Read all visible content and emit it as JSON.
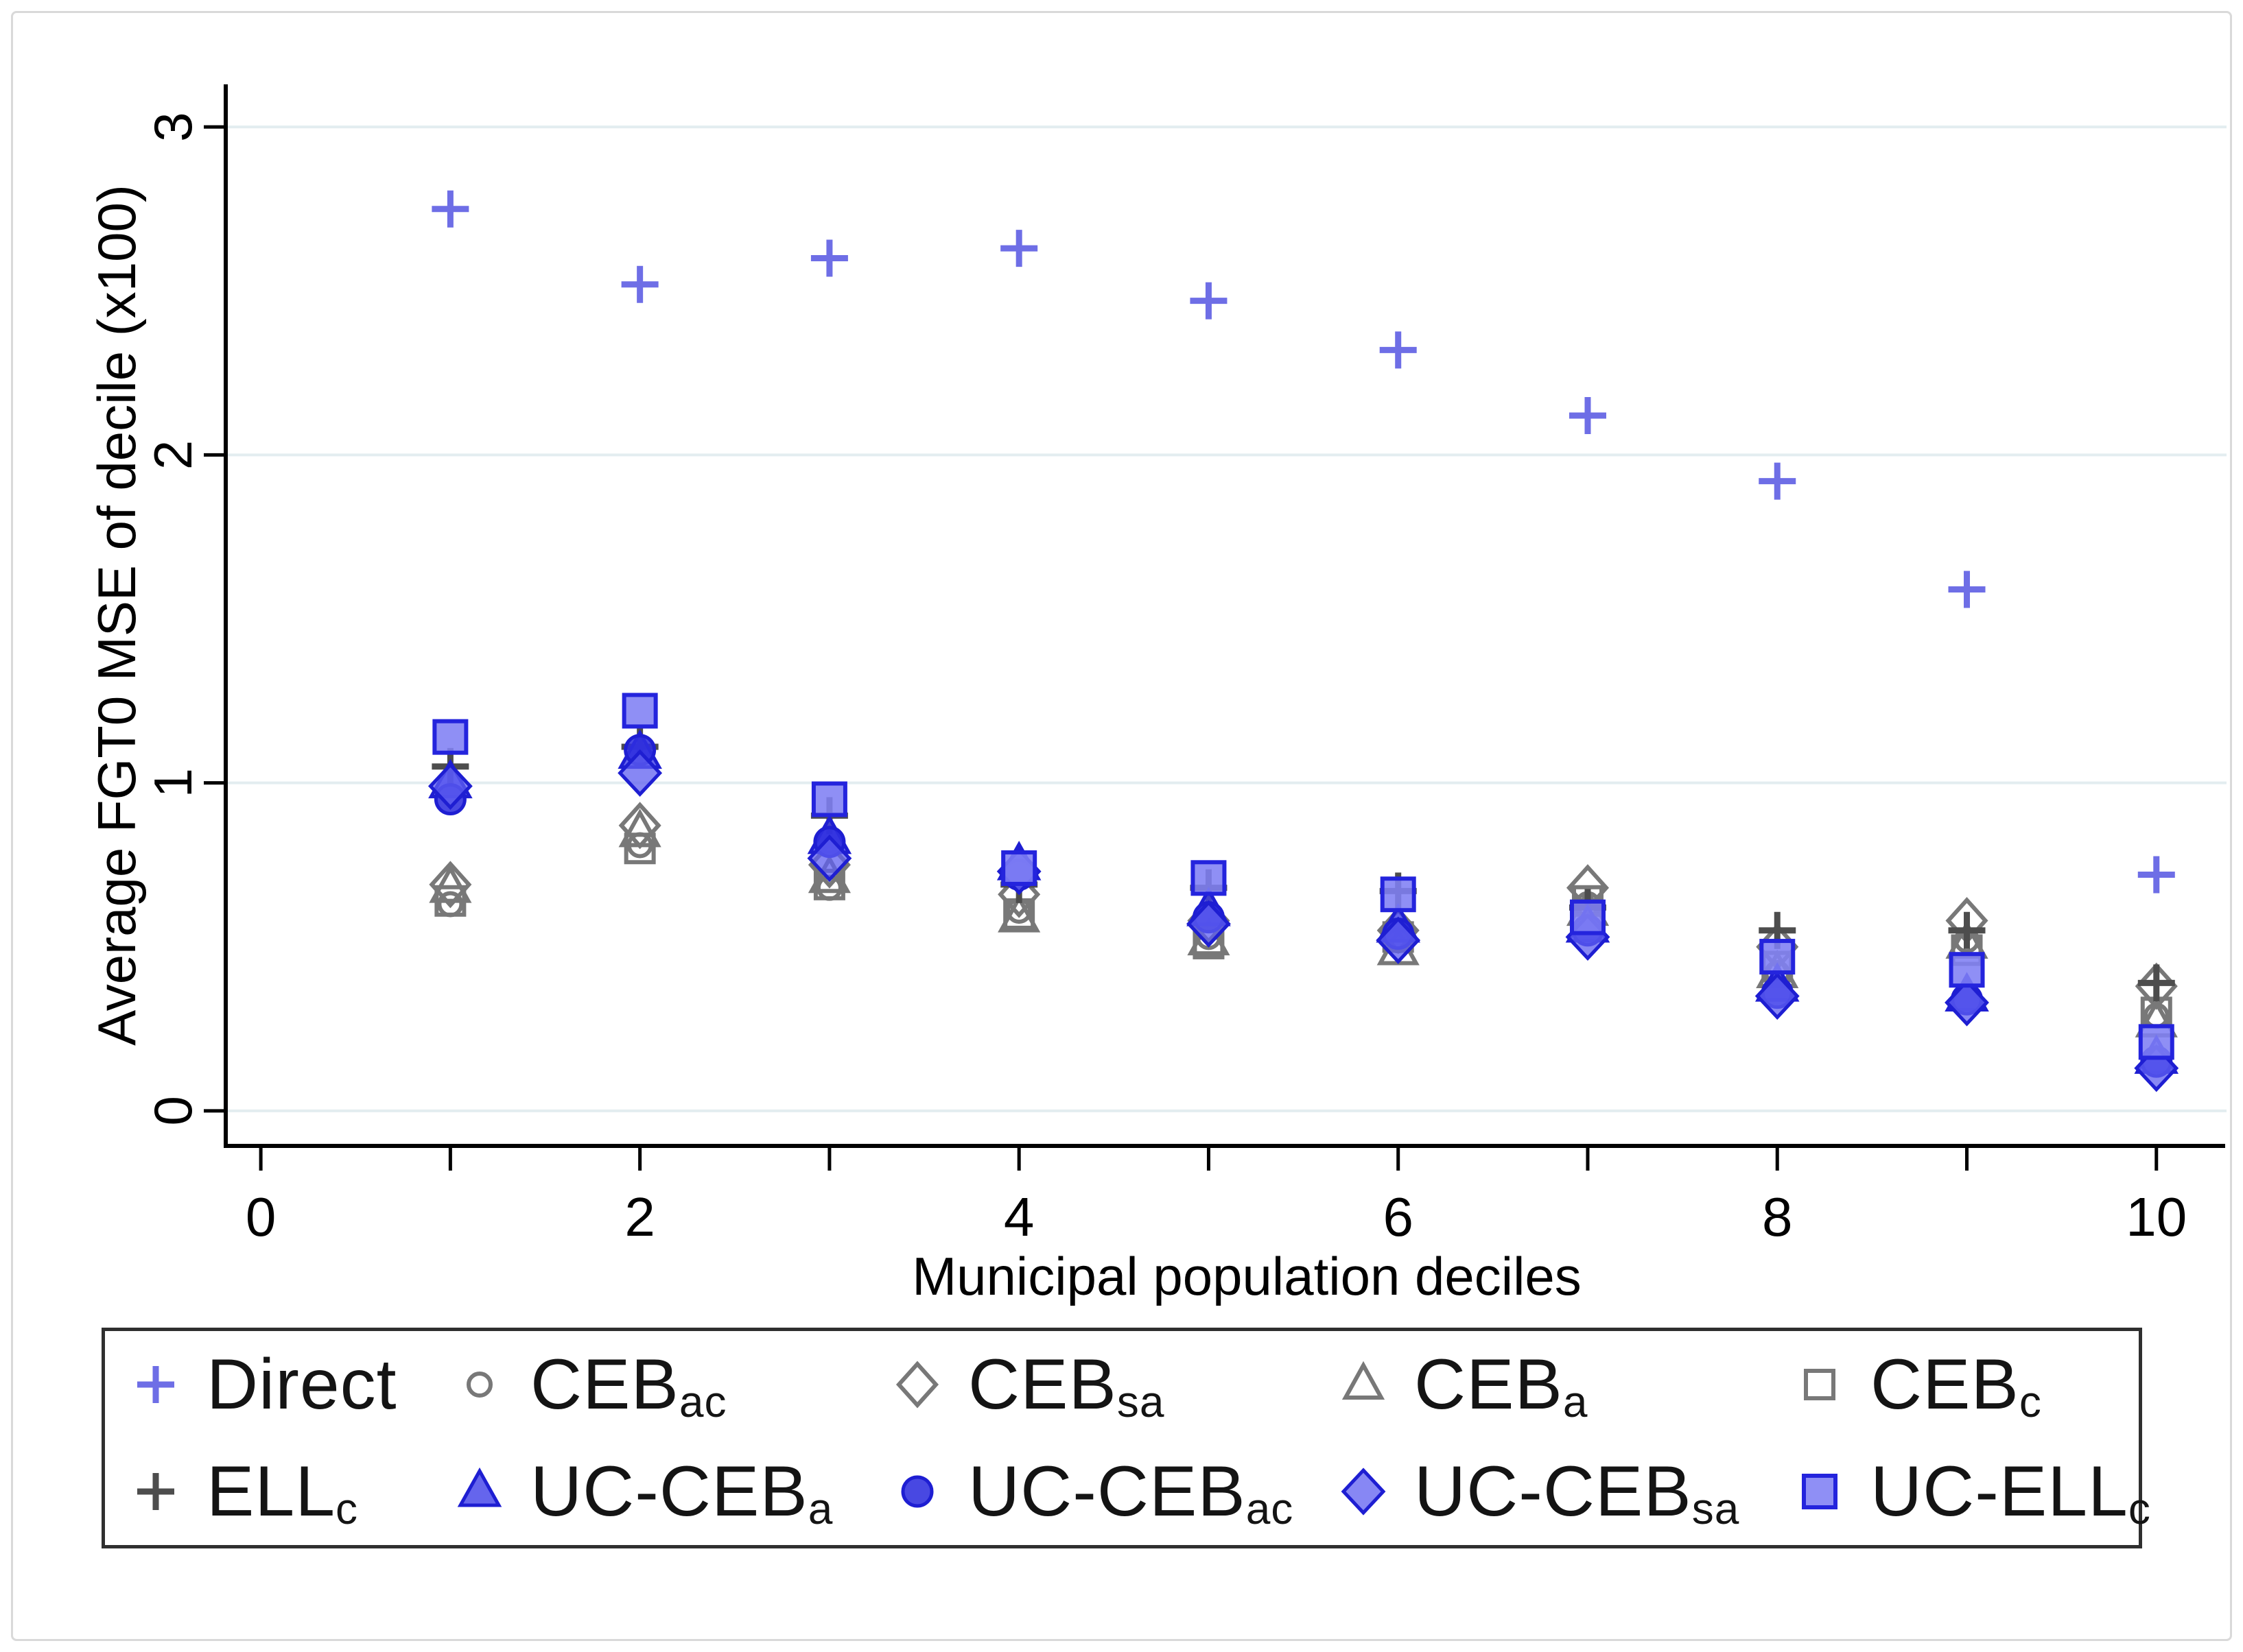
{
  "figure_title": "",
  "chart_data": {
    "type": "scatter",
    "title": "",
    "xlabel": "Municipal population deciles",
    "ylabel": "Average FGT0 MSE of decile (x100)",
    "xlim": [
      -0.185,
      10.37
    ],
    "ylim": [
      -0.107,
      3.13
    ],
    "x_ticks": [
      0,
      1,
      2,
      3,
      4,
      5,
      6,
      7,
      8,
      9,
      10
    ],
    "x_tick_labels": [
      "0",
      "",
      "2",
      "",
      "4",
      "",
      "6",
      "",
      "8",
      "",
      "10"
    ],
    "y_ticks": [
      0,
      1,
      2,
      3
    ],
    "y_tick_labels": [
      "0",
      "1",
      "2",
      "3"
    ],
    "grid": "horizontal-only",
    "gridline_color": "#e3edf0",
    "axis_color": "#000000",
    "legend_position": "bottom",
    "x": [
      1,
      2,
      3,
      4,
      5,
      6,
      7,
      8,
      9,
      10
    ],
    "series": [
      {
        "name": "Direct",
        "label_main": "Direct",
        "label_sub": "",
        "marker": "plus",
        "stroke": "#6e6ee6",
        "fill": "none",
        "legend_row": 1,
        "legend_col": 1,
        "values": [
          2.75,
          2.52,
          2.6,
          2.63,
          2.47,
          2.32,
          2.12,
          1.92,
          1.59,
          0.72
        ]
      },
      {
        "name": "CEB_ac",
        "label_main": "CEB",
        "label_sub": "ac",
        "marker": "circle-o",
        "stroke": "#787878",
        "fill": "none",
        "legend_row": 1,
        "legend_col": 2,
        "values": [
          0.63,
          0.81,
          0.68,
          0.61,
          0.53,
          0.52,
          0.63,
          0.42,
          0.52,
          0.29
        ]
      },
      {
        "name": "CEB_sa",
        "label_main": "CEB",
        "label_sub": "sa",
        "marker": "diamond-o",
        "stroke": "#787878",
        "fill": "none",
        "legend_row": 1,
        "legend_col": 3,
        "values": [
          0.69,
          0.87,
          0.75,
          0.66,
          0.58,
          0.55,
          0.68,
          0.5,
          0.58,
          0.38
        ]
      },
      {
        "name": "CEB_a",
        "label_main": "CEB",
        "label_sub": "a",
        "marker": "triangle-o",
        "stroke": "#787878",
        "fill": "none",
        "legend_row": 1,
        "legend_col": 4,
        "values": [
          0.68,
          0.85,
          0.71,
          0.59,
          0.52,
          0.49,
          0.61,
          0.42,
          0.51,
          0.27
        ]
      },
      {
        "name": "CEB_c",
        "label_main": "CEB",
        "label_sub": "c",
        "marker": "square-o",
        "stroke": "#787878",
        "fill": "none",
        "legend_row": 1,
        "legend_col": 5,
        "values": [
          0.64,
          0.8,
          0.69,
          0.6,
          0.51,
          0.53,
          0.64,
          0.44,
          0.49,
          0.3
        ]
      },
      {
        "name": "ELL_c",
        "label_main": "ELL",
        "label_sub": "c",
        "marker": "plus",
        "stroke": "#4d4d4d",
        "fill": "none",
        "legend_row": 2,
        "legend_col": 1,
        "values": [
          1.05,
          1.11,
          0.9,
          0.69,
          0.68,
          0.67,
          0.62,
          0.55,
          0.55,
          0.39
        ]
      },
      {
        "name": "UC-CEB_a",
        "label_main": "UC-CEB",
        "label_sub": "a",
        "marker": "triangle-f",
        "stroke": "#1e1ed2",
        "fill": "rgba(62,62,232,0.80)",
        "legend_row": 2,
        "legend_col": 2,
        "values": [
          1.0,
          1.09,
          0.83,
          0.75,
          0.61,
          0.56,
          0.56,
          0.38,
          0.35,
          0.16
        ]
      },
      {
        "name": "UC-CEB_ac",
        "label_main": "UC-CEB",
        "label_sub": "ac",
        "marker": "circle-f",
        "stroke": "#1e1ed2",
        "fill": "rgba(47,47,222,0.88)",
        "legend_row": 2,
        "legend_col": 3,
        "values": [
          0.95,
          1.1,
          0.82,
          0.72,
          0.59,
          0.54,
          0.55,
          0.36,
          0.34,
          0.15
        ]
      },
      {
        "name": "UC-CEB_sa",
        "label_main": "UC-CEB",
        "label_sub": "sa",
        "marker": "diamond-f",
        "stroke": "#1e1ed2",
        "fill": "rgba(95,95,240,0.75)",
        "legend_row": 2,
        "legend_col": 4,
        "values": [
          0.99,
          1.03,
          0.77,
          0.73,
          0.57,
          0.52,
          0.53,
          0.35,
          0.33,
          0.13
        ]
      },
      {
        "name": "UC-ELL_c",
        "label_main": "UC-ELL",
        "label_sub": "c",
        "marker": "square-f",
        "stroke": "#2424dd",
        "fill": "rgba(128,128,244,0.88)",
        "legend_row": 2,
        "legend_col": 5,
        "values": [
          1.14,
          1.22,
          0.95,
          0.74,
          0.71,
          0.66,
          0.59,
          0.47,
          0.43,
          0.21
        ]
      }
    ]
  }
}
